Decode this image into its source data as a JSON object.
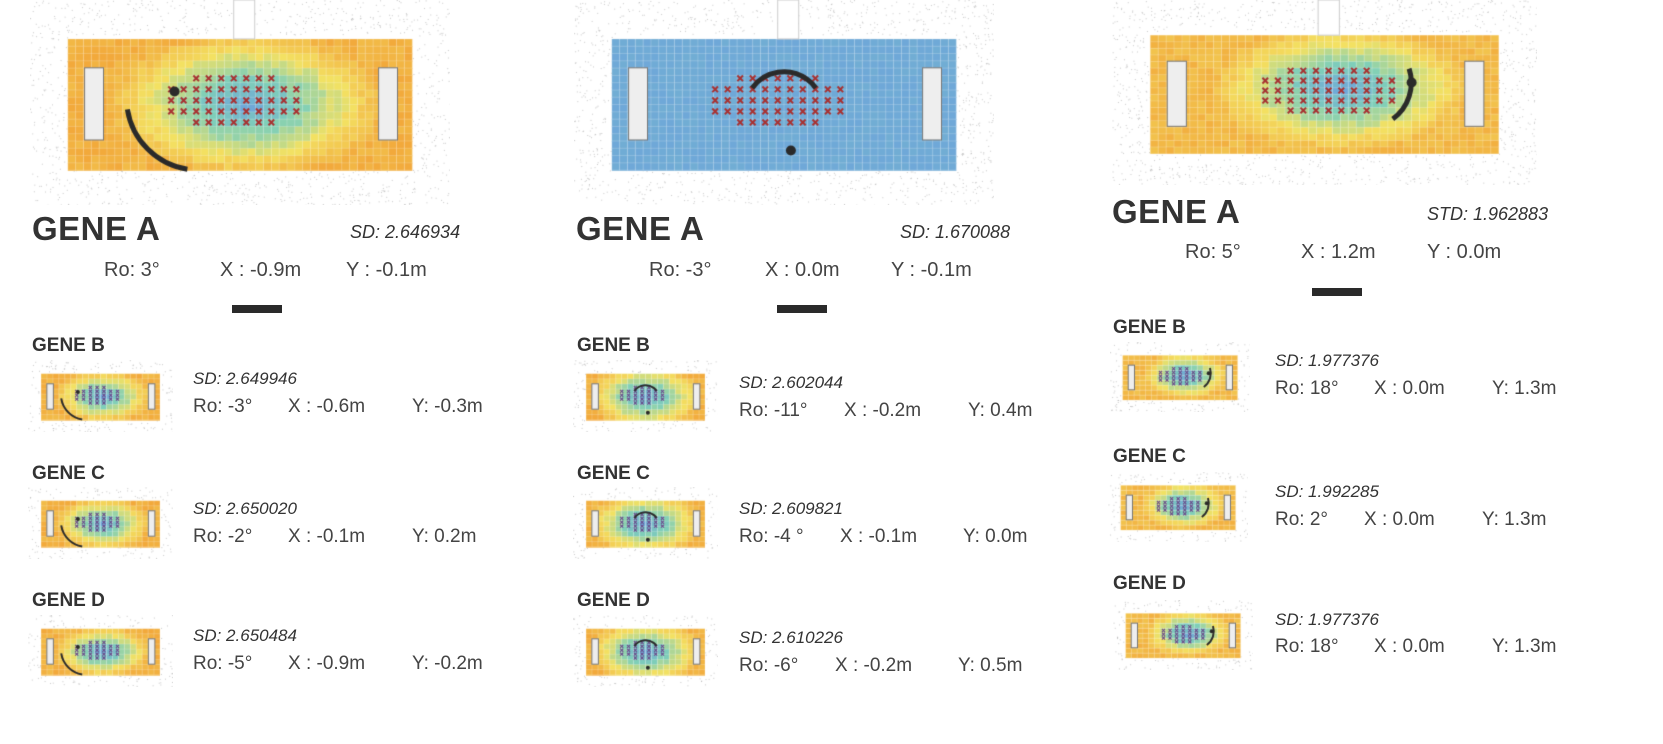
{
  "palette": {
    "orange": "#f2a93b",
    "yellow": "#f3e162",
    "green": "#7fcfb8",
    "blue": "#6fa8d8",
    "marker": "#a83232",
    "dark": "#2a2a2a"
  },
  "columns": [
    {
      "main": {
        "title": "GENE A",
        "sd": "SD: 2.646934",
        "ro": "Ro: 3°",
        "x": "X : -0.9m",
        "y": "Y : -0.1m"
      },
      "genes": [
        {
          "title": "GENE B",
          "sd": "SD: 2.649946",
          "ro": "Ro: -3°",
          "x": "X : -0.6m",
          "y": "Y: -0.3m"
        },
        {
          "title": "GENE C",
          "sd": "SD: 2.650020",
          "ro": "Ro: -2°",
          "x": "X : -0.1m",
          "y": "Y: 0.2m"
        },
        {
          "title": "GENE D",
          "sd": "SD: 2.650484",
          "ro": "Ro: -5°",
          "x": "X : -0.9m",
          "y": "Y: -0.2m"
        }
      ]
    },
    {
      "main": {
        "title": "GENE A",
        "sd": "SD: 1.670088",
        "ro": "Ro: -3°",
        "x": "X : 0.0m",
        "y": "Y : -0.1m"
      },
      "genes": [
        {
          "title": "GENE B",
          "sd": "SD: 2.602044",
          "ro": "Ro: -11°",
          "x": "X : -0.2m",
          "y": "Y: 0.4m"
        },
        {
          "title": "GENE C",
          "sd": "SD: 2.609821",
          "ro": "Ro: -4 °",
          "x": "X : -0.1m",
          "y": "Y: 0.0m"
        },
        {
          "title": "GENE D",
          "sd": "SD: 2.610226",
          "ro": "Ro: -6°",
          "x": "X : -0.2m",
          "y": "Y: 0.5m"
        }
      ]
    },
    {
      "main": {
        "title": "GENE A",
        "sd": "STD: 1.962883",
        "ro": "Ro: 5°",
        "x": "X : 1.2m",
        "y": "Y : 0.0m"
      },
      "genes": [
        {
          "title": "GENE B",
          "sd": "SD: 1.977376",
          "ro": "Ro: 18°",
          "x": "X : 0.0m",
          "y": "Y: 1.3m"
        },
        {
          "title": "GENE C",
          "sd": "SD: 1.992285",
          "ro": "Ro: 2°",
          "x": "X : 0.0m",
          "y": "Y: 1.3m"
        },
        {
          "title": "GENE D",
          "sd": "SD: 1.977376",
          "ro": "Ro: 18°",
          "x": "X : 0.0m",
          "y": "Y: 1.3m"
        }
      ]
    }
  ]
}
